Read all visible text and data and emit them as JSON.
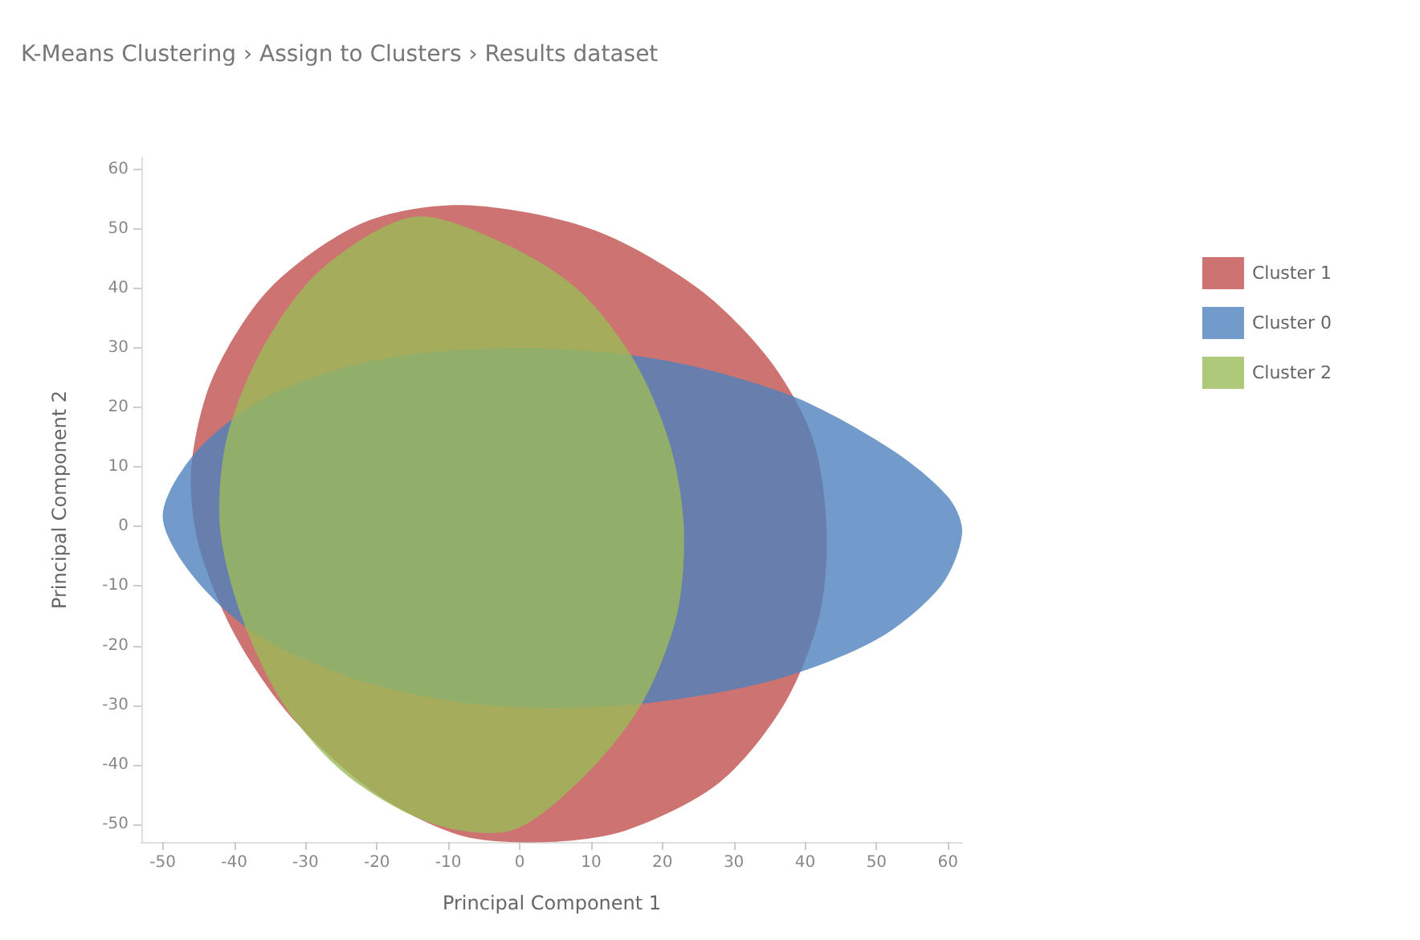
{
  "chart_data": {
    "type": "area",
    "title": "K-Means Clustering › Assign to Clusters › Results dataset",
    "xlabel": "Principal Component 1",
    "ylabel": "Principal Component 2",
    "xlim": [
      -53,
      62
    ],
    "ylim": [
      -53,
      62
    ],
    "xticks": [
      -50,
      -40,
      -30,
      -20,
      -10,
      0,
      10,
      20,
      30,
      40,
      50,
      60
    ],
    "yticks": [
      -50,
      -40,
      -30,
      -20,
      -10,
      0,
      10,
      20,
      30,
      40,
      50,
      60
    ],
    "grid": false,
    "legend": "top right",
    "series": [
      {
        "name": "Cluster 1",
        "color": "#c0504d",
        "x": [
          -8,
          10,
          25,
          35,
          41,
          43,
          42,
          37,
          28,
          15,
          4,
          -8,
          -20,
          -32,
          -40,
          -45,
          -46,
          -43,
          -35,
          -22
        ],
        "values": [
          54,
          50,
          40,
          28,
          15,
          0,
          -15,
          -30,
          -43,
          -51,
          -53,
          -52,
          -45,
          -32,
          -18,
          -3,
          10,
          25,
          40,
          51
        ]
      },
      {
        "name": "Cluster 0",
        "color": "#4f81bd",
        "x": [
          -50,
          -45,
          -35,
          -20,
          0,
          20,
          38,
          52,
          60,
          62,
          59,
          50,
          35,
          15,
          -5,
          -22,
          -37,
          -46
        ],
        "values": [
          2,
          13,
          22,
          28,
          30,
          28,
          22,
          13,
          5,
          -1,
          -10,
          -19,
          -26,
          -30,
          -30,
          -26,
          -18,
          -8
        ]
      },
      {
        "name": "Cluster 2",
        "color": "#9bbb59",
        "x": [
          -15,
          -3,
          8,
          16,
          21,
          23,
          22,
          17,
          9,
          -1,
          -12,
          -24,
          -33,
          -39,
          -42,
          -41,
          -36,
          -28
        ],
        "values": [
          52,
          48,
          40,
          28,
          14,
          0,
          -15,
          -30,
          -42,
          -51,
          -50,
          -42,
          -30,
          -15,
          0,
          15,
          30,
          43
        ]
      }
    ]
  }
}
